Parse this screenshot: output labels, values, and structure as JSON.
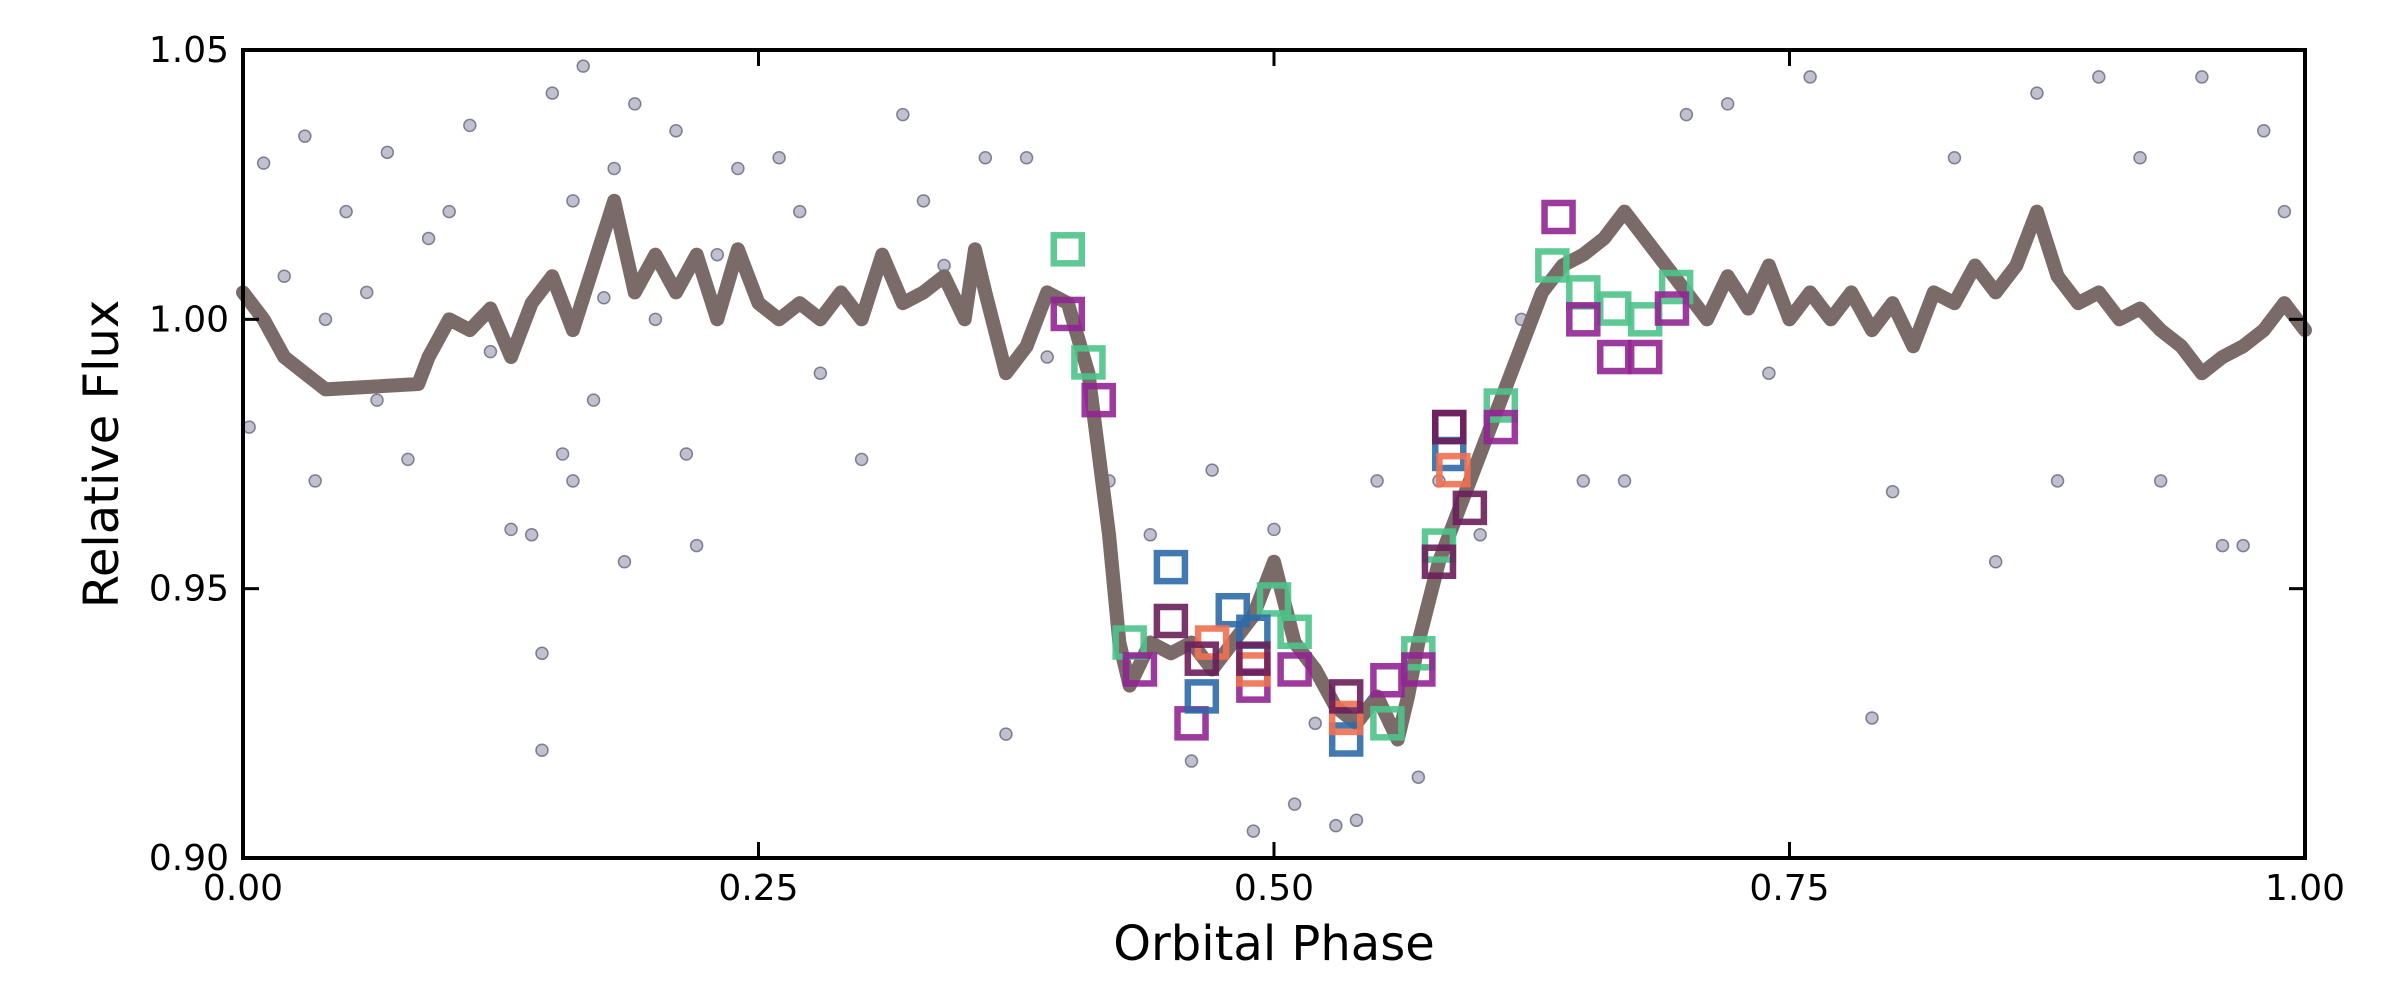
{
  "chart_data": {
    "type": "scatter",
    "xlabel": "Orbital Phase",
    "ylabel": "Relative Flux",
    "xlim": [
      0,
      1
    ],
    "ylim": [
      0.9,
      1.05
    ],
    "xticks": [
      {
        "value": 0,
        "label": "0.00"
      },
      {
        "value": 0.25,
        "label": "0.25"
      },
      {
        "value": 0.5,
        "label": "0.50"
      },
      {
        "value": 0.75,
        "label": "0.75"
      },
      {
        "value": 1,
        "label": "1.00"
      }
    ],
    "yticks": [
      {
        "value": 0.9,
        "label": "0.90"
      },
      0.95,
      {
        "value": 1,
        "label": "1.00"
      },
      1.05
    ],
    "grid": false,
    "series": [
      {
        "kind": "points",
        "color": "#8c8ca6",
        "x": [
          0.003,
          0.01,
          0.02,
          0.03,
          0.035,
          0.04,
          0.05,
          0.06,
          0.065,
          0.07,
          0.08,
          0.09,
          0.1,
          0.11,
          0.12,
          0.13,
          0.14,
          0.145,
          0.145,
          0.15,
          0.155,
          0.16,
          0.16,
          0.165,
          0.17,
          0.175,
          0.18,
          0.185,
          0.19,
          0.2,
          0.21,
          0.215,
          0.22,
          0.23,
          0.24,
          0.26,
          0.27,
          0.28,
          0.3,
          0.32,
          0.33,
          0.34,
          0.36,
          0.37,
          0.38,
          0.39,
          0.42,
          0.44,
          0.46,
          0.47,
          0.49,
          0.5,
          0.51,
          0.52,
          0.53,
          0.54,
          0.55,
          0.57,
          0.58,
          0.6,
          0.62,
          0.65,
          0.67,
          0.7,
          0.72,
          0.74,
          0.76,
          0.79,
          0.8,
          0.83,
          0.85,
          0.87,
          0.88,
          0.9,
          0.92,
          0.93,
          0.95,
          0.96,
          0.97,
          0.98,
          0.99
        ],
        "values": [
          0.98,
          1.029,
          1.008,
          1.034,
          0.97,
          1.0,
          1.02,
          1.005,
          0.985,
          1.031,
          0.974,
          1.015,
          1.02,
          1.036,
          0.994,
          0.961,
          0.96,
          0.938,
          0.92,
          1.042,
          0.975,
          1.022,
          0.97,
          1.047,
          0.985,
          1.004,
          1.028,
          0.955,
          1.04,
          1.0,
          1.035,
          0.975,
          0.958,
          1.012,
          1.028,
          1.03,
          1.02,
          0.99,
          0.974,
          1.038,
          1.022,
          1.01,
          1.03,
          0.923,
          1.03,
          0.993,
          0.97,
          0.96,
          0.918,
          0.972,
          0.905,
          0.961,
          0.91,
          0.925,
          0.906,
          0.907,
          0.97,
          0.915,
          0.97,
          0.96,
          1.0,
          0.97,
          0.97,
          1.038,
          1.04,
          0.99,
          1.045,
          0.926,
          0.968,
          1.03,
          0.955,
          1.042,
          0.97,
          1.045,
          1.03,
          0.97,
          1.045,
          0.958,
          0.958,
          1.035,
          1.02
        ]
      },
      {
        "kind": "line",
        "color": "#7a6a68",
        "x": [
          0,
          0.01,
          0.02,
          0.03,
          0.04,
          0.085,
          0.09,
          0.1,
          0.11,
          0.12,
          0.13,
          0.14,
          0.15,
          0.16,
          0.17,
          0.18,
          0.19,
          0.2,
          0.21,
          0.22,
          0.23,
          0.24,
          0.25,
          0.26,
          0.27,
          0.28,
          0.29,
          0.3,
          0.31,
          0.32,
          0.33,
          0.34,
          0.35,
          0.355,
          0.36,
          0.37,
          0.38,
          0.39,
          0.4,
          0.41,
          0.415,
          0.42,
          0.425,
          0.43,
          0.44,
          0.45,
          0.46,
          0.47,
          0.48,
          0.49,
          0.5,
          0.51,
          0.52,
          0.53,
          0.54,
          0.55,
          0.56,
          0.565,
          0.57,
          0.58,
          0.59,
          0.6,
          0.61,
          0.62,
          0.63,
          0.64,
          0.65,
          0.66,
          0.67,
          0.68,
          0.69,
          0.7,
          0.71,
          0.72,
          0.73,
          0.74,
          0.75,
          0.76,
          0.77,
          0.78,
          0.79,
          0.8,
          0.81,
          0.82,
          0.83,
          0.84,
          0.85,
          0.86,
          0.87,
          0.88,
          0.89,
          0.9,
          0.91,
          0.92,
          0.93,
          0.94,
          0.95,
          0.96,
          0.97,
          0.98,
          0.99,
          1.0
        ],
        "values": [
          1.005,
          1.0,
          0.993,
          0.99,
          0.987,
          0.988,
          0.993,
          1.0,
          0.998,
          1.002,
          0.993,
          1.003,
          1.008,
          0.998,
          1.01,
          1.022,
          1.005,
          1.012,
          1.005,
          1.012,
          1.0,
          1.013,
          1.003,
          1.0,
          1.003,
          1.0,
          1.005,
          1.0,
          1.012,
          1.003,
          1.005,
          1.008,
          1.0,
          1.013,
          1.005,
          0.99,
          0.995,
          1.005,
          1.003,
          0.99,
          0.975,
          0.96,
          0.94,
          0.932,
          0.94,
          0.938,
          0.94,
          0.935,
          0.94,
          0.945,
          0.955,
          0.94,
          0.935,
          0.928,
          0.925,
          0.93,
          0.922,
          0.93,
          0.94,
          0.955,
          0.965,
          0.975,
          0.985,
          0.995,
          1.005,
          1.01,
          1.012,
          1.015,
          1.02,
          1.015,
          1.01,
          1.005,
          1.0,
          1.008,
          1.002,
          1.01,
          1.0,
          1.005,
          1.0,
          1.005,
          0.998,
          1.003,
          0.995,
          1.005,
          1.003,
          1.01,
          1.005,
          1.01,
          1.02,
          1.008,
          1.003,
          1.005,
          1.0,
          1.002,
          0.998,
          0.995,
          0.99,
          0.993,
          0.995,
          0.998,
          1.003,
          0.998
        ]
      },
      {
        "kind": "squares",
        "color": "#4cc38a",
        "x": [
          0.4,
          0.41,
          0.43,
          0.5,
          0.51,
          0.555,
          0.57,
          0.58,
          0.61,
          0.635,
          0.65,
          0.665,
          0.68,
          0.695
        ],
        "values": [
          1.013,
          0.992,
          0.94,
          0.948,
          0.942,
          0.925,
          0.938,
          0.958,
          0.984,
          1.01,
          1.005,
          1.002,
          1.0,
          1.006
        ]
      },
      {
        "kind": "squares",
        "color": "#912592",
        "x": [
          0.4,
          0.415,
          0.435,
          0.46,
          0.49,
          0.51,
          0.555,
          0.57,
          0.61,
          0.638,
          0.65,
          0.665,
          0.68,
          0.693,
          0.585
        ],
        "values": [
          1.001,
          0.985,
          0.935,
          0.925,
          0.932,
          0.935,
          0.933,
          0.935,
          0.98,
          1.019,
          1.0,
          0.993,
          0.993,
          1.002,
          0.98
        ]
      },
      {
        "kind": "squares",
        "color": "#2f6aa8",
        "x": [
          0.45,
          0.465,
          0.48,
          0.49,
          0.535,
          0.585
        ],
        "values": [
          0.954,
          0.93,
          0.946,
          0.942,
          0.922,
          0.975
        ]
      },
      {
        "kind": "squares",
        "color": "#f07050",
        "x": [
          0.47,
          0.49,
          0.535,
          0.587
        ],
        "values": [
          0.94,
          0.935,
          0.926,
          0.972
        ]
      },
      {
        "kind": "squares",
        "color": "#6a1f5a",
        "x": [
          0.45,
          0.465,
          0.49,
          0.535,
          0.58,
          0.595,
          0.585
        ],
        "values": [
          0.944,
          0.937,
          0.937,
          0.93,
          0.955,
          0.965,
          0.98
        ]
      }
    ]
  }
}
